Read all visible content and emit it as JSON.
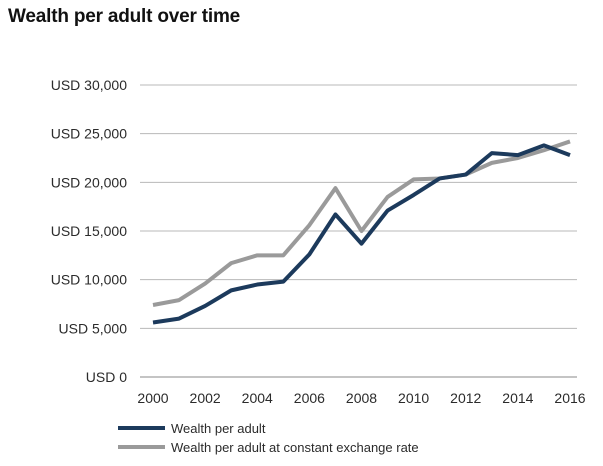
{
  "chart_data": {
    "type": "line",
    "title": "Wealth per adult over time",
    "xlabel": "",
    "ylabel": "",
    "x": [
      2000,
      2001,
      2002,
      2003,
      2004,
      2005,
      2006,
      2007,
      2008,
      2009,
      2010,
      2011,
      2012,
      2013,
      2014,
      2015,
      2016
    ],
    "x_ticks": [
      "2000",
      "2002",
      "2004",
      "2006",
      "2008",
      "2010",
      "2012",
      "2014",
      "2016"
    ],
    "y_ticks": [
      "USD 0",
      "USD 5,000",
      "USD 10,000",
      "USD 15,000",
      "USD 20,000",
      "USD 25,000",
      "USD 30,000"
    ],
    "ylim": [
      0,
      30000
    ],
    "xlim": [
      2000,
      2016
    ],
    "grid": "horizontal",
    "legend_position": "bottom-left",
    "series": [
      {
        "name": "Wealth per adult",
        "color": "#1c3a5c",
        "values": [
          5600,
          6000,
          7300,
          8900,
          9500,
          9800,
          12600,
          16700,
          13700,
          17100,
          18700,
          20400,
          20800,
          23000,
          22800,
          23800,
          22800
        ]
      },
      {
        "name": "Wealth per adult at constant exchange rate",
        "color": "#9a9a9a",
        "values": [
          7400,
          7900,
          9600,
          11700,
          12500,
          12500,
          15600,
          19400,
          15000,
          18500,
          20300,
          20400,
          20800,
          22000,
          22500,
          23300,
          24200
        ]
      }
    ]
  }
}
